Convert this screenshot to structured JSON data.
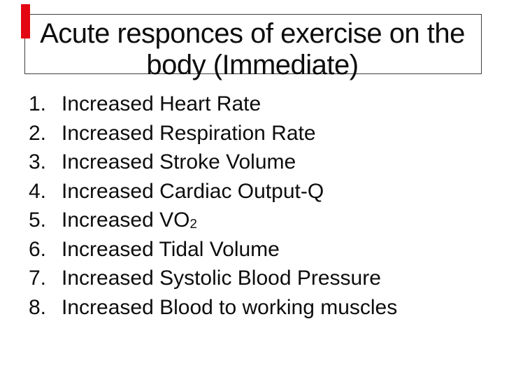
{
  "slide": {
    "background": "#ffffff",
    "text_color": "#0d0d0d",
    "accent": {
      "color": "#e30613"
    },
    "title": {
      "border_color": "#3f3f3f",
      "lines": [
        "Acute responces of exercise on the",
        "body (Immediate)"
      ]
    },
    "list": {
      "items": [
        {
          "number": "1.",
          "text": "Increased Heart Rate",
          "subscript": ""
        },
        {
          "number": "2.",
          "text": "Increased Respiration Rate",
          "subscript": ""
        },
        {
          "number": "3.",
          "text": "Increased Stroke Volume",
          "subscript": ""
        },
        {
          "number": "4.",
          "text": "Increased Cardiac Output-Q",
          "subscript": ""
        },
        {
          "number": "5.",
          "text": "Increased VO",
          "subscript": "2"
        },
        {
          "number": "6.",
          "text": "Increased Tidal Volume",
          "subscript": ""
        },
        {
          "number": "7.",
          "text": "Increased Systolic Blood Pressure",
          "subscript": ""
        },
        {
          "number": "8.",
          "text": "Increased Blood to working muscles",
          "subscript": ""
        }
      ]
    }
  }
}
